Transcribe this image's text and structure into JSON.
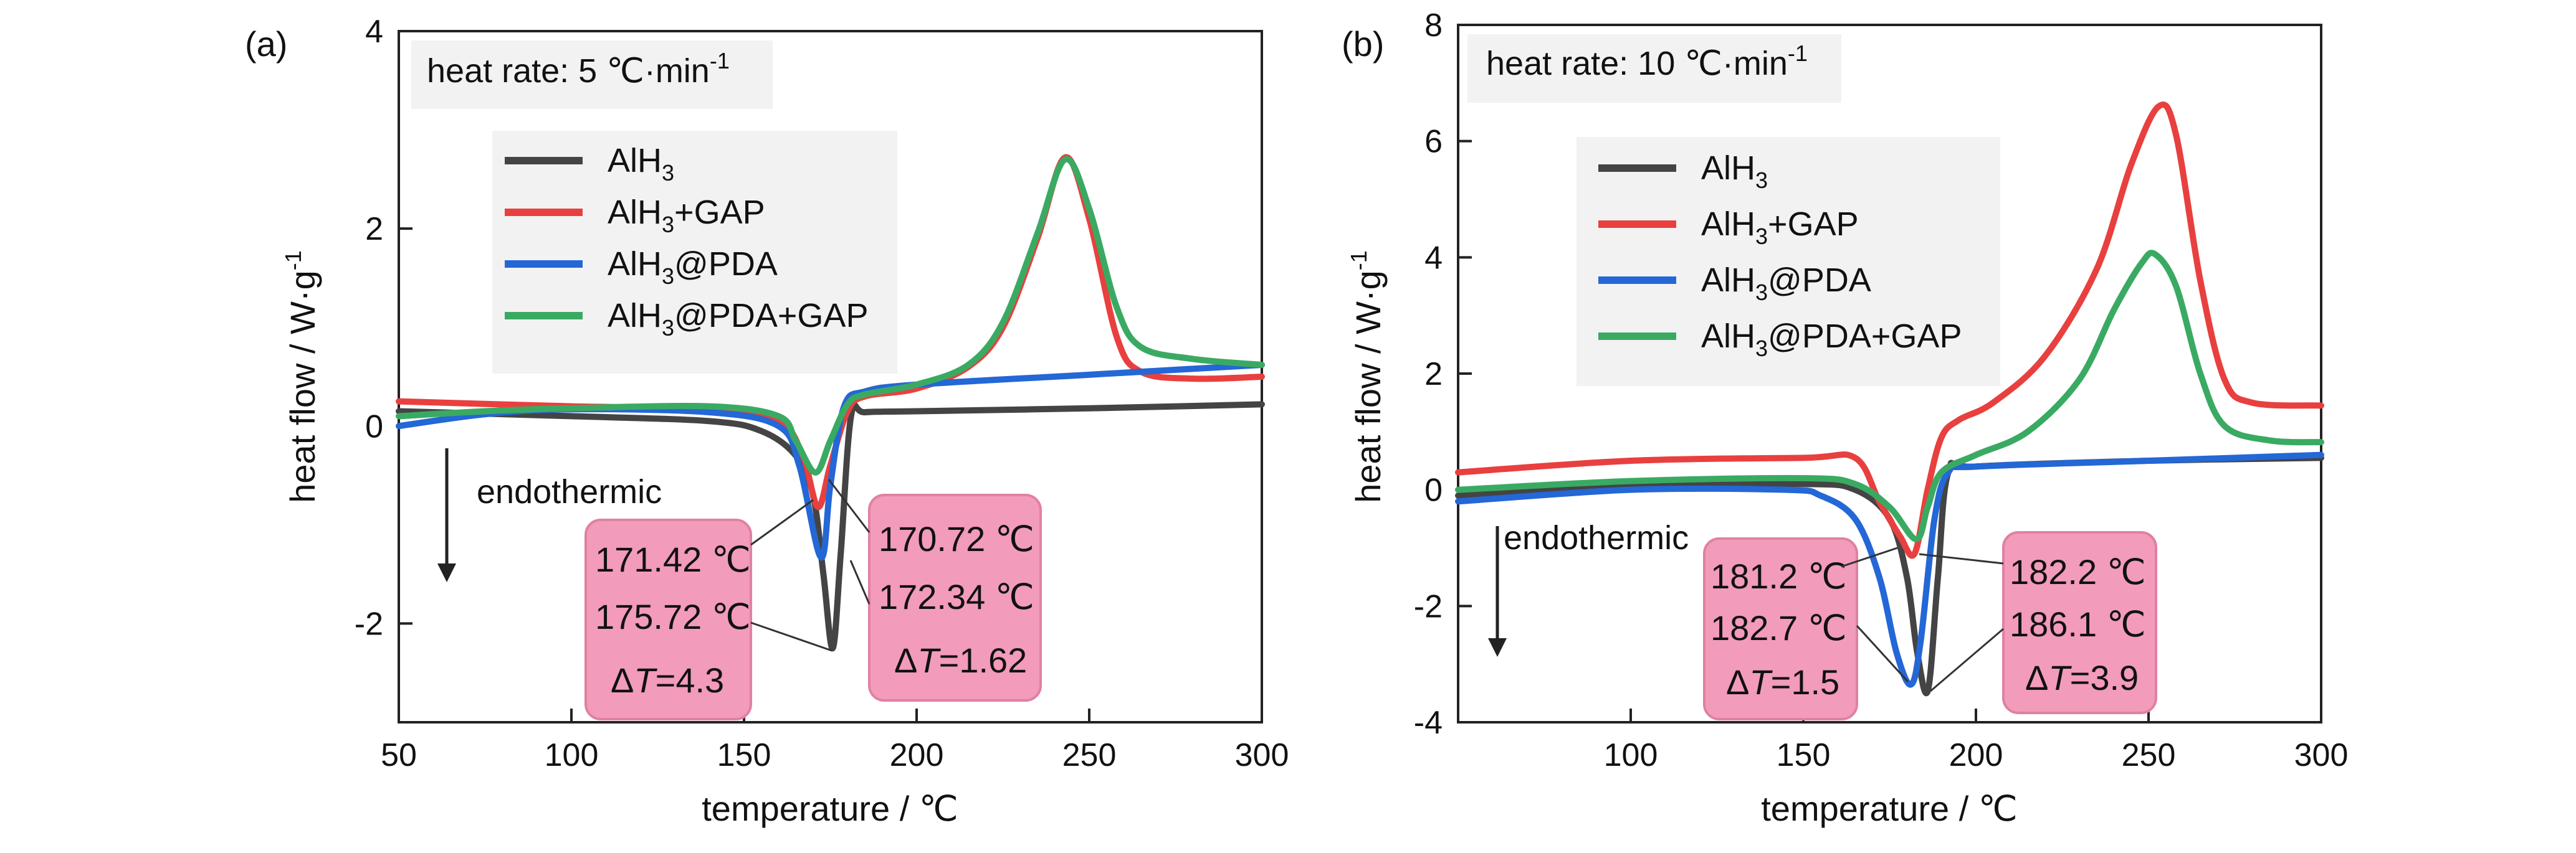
{
  "panels": [
    {
      "letter": "(a)",
      "heat_rate": "heat rate: 5 ℃·min",
      "heat_rate_sup": "-1",
      "endothermic": "endothermic",
      "legend": [
        {
          "base": "AlH",
          "sub": "3",
          "rest": "",
          "color": "#444444"
        },
        {
          "base": "AlH",
          "sub": "3",
          "rest": "+GAP",
          "color": "#e8403f"
        },
        {
          "base": "AlH",
          "sub": "3",
          "rest": "@PDA",
          "color": "#2467d6"
        },
        {
          "base": "AlH",
          "sub": "3",
          "rest": "@PDA+GAP",
          "color": "#3aaa63"
        }
      ],
      "annotations": {
        "left_lines": [
          "171.42 ℃",
          "175.72 ℃"
        ],
        "left_delta": "=4.3",
        "right_lines": [
          "170.72 ℃",
          "172.34 ℃"
        ],
        "right_delta": "=1.62"
      }
    },
    {
      "letter": "(b)",
      "heat_rate": "heat rate: 10 ℃·min",
      "heat_rate_sup": "-1",
      "endothermic": "endothermic",
      "legend": [
        {
          "base": "AlH",
          "sub": "3",
          "rest": "",
          "color": "#444444"
        },
        {
          "base": "AlH",
          "sub": "3",
          "rest": "+GAP",
          "color": "#e8403f"
        },
        {
          "base": "AlH",
          "sub": "3",
          "rest": "@PDA",
          "color": "#2467d6"
        },
        {
          "base": "AlH",
          "sub": "3",
          "rest": "@PDA+GAP",
          "color": "#3aaa63"
        }
      ],
      "annotations": {
        "left_lines": [
          "181.2 ℃",
          "182.7 ℃"
        ],
        "left_delta": "=1.5",
        "right_lines": [
          "182.2 ℃",
          "186.1 ℃"
        ],
        "right_delta": "=3.9"
      }
    }
  ],
  "delta_symbol": "Δ",
  "delta_var": "T",
  "chart_data": [
    {
      "type": "line",
      "xlabel": "temperature / ℃",
      "ylabel": "heat flow / W·g",
      "ylabel_sup": "-1",
      "xlim": [
        50,
        300
      ],
      "ylim": [
        -3,
        4
      ],
      "xticks": [
        50,
        100,
        150,
        200,
        250,
        300
      ],
      "yticks": [
        -2,
        0,
        2,
        4
      ],
      "series": [
        {
          "name": "AlH3",
          "color": "#444444",
          "points": [
            [
              50,
              0.15
            ],
            [
              100,
              0.1
            ],
            [
              140,
              0.05
            ],
            [
              155,
              -0.05
            ],
            [
              165,
              -0.3
            ],
            [
              170,
              -0.7
            ],
            [
              173,
              -1.5
            ],
            [
              175.7,
              -2.25
            ],
            [
              178,
              -1.3
            ],
            [
              181,
              0.1
            ],
            [
              185,
              0.14
            ],
            [
              200,
              0.15
            ],
            [
              250,
              0.18
            ],
            [
              300,
              0.22
            ]
          ]
        },
        {
          "name": "AlH3+GAP",
          "color": "#e8403f",
          "points": [
            [
              50,
              0.25
            ],
            [
              100,
              0.2
            ],
            [
              140,
              0.17
            ],
            [
              160,
              0.05
            ],
            [
              167,
              -0.3
            ],
            [
              171.4,
              -0.82
            ],
            [
              175,
              -0.4
            ],
            [
              180,
              0.15
            ],
            [
              185,
              0.3
            ],
            [
              200,
              0.38
            ],
            [
              215,
              0.6
            ],
            [
              225,
              1.0
            ],
            [
              235,
              1.9
            ],
            [
              243,
              2.72
            ],
            [
              250,
              2.1
            ],
            [
              258,
              0.9
            ],
            [
              265,
              0.55
            ],
            [
              280,
              0.48
            ],
            [
              300,
              0.5
            ]
          ]
        },
        {
          "name": "AlH3@PDA",
          "color": "#2467d6",
          "points": [
            [
              50,
              0.0
            ],
            [
              75,
              0.12
            ],
            [
              100,
              0.17
            ],
            [
              140,
              0.14
            ],
            [
              160,
              0.0
            ],
            [
              166,
              -0.4
            ],
            [
              172.3,
              -1.33
            ],
            [
              175,
              -0.6
            ],
            [
              179,
              0.2
            ],
            [
              185,
              0.35
            ],
            [
              200,
              0.42
            ],
            [
              250,
              0.52
            ],
            [
              300,
              0.62
            ]
          ]
        },
        {
          "name": "AlH3@PDA+GAP",
          "color": "#3aaa63",
          "points": [
            [
              50,
              0.1
            ],
            [
              75,
              0.15
            ],
            [
              100,
              0.18
            ],
            [
              140,
              0.2
            ],
            [
              160,
              0.1
            ],
            [
              165,
              -0.15
            ],
            [
              170.7,
              -0.47
            ],
            [
              175,
              -0.15
            ],
            [
              180,
              0.22
            ],
            [
              185,
              0.32
            ],
            [
              200,
              0.42
            ],
            [
              215,
              0.62
            ],
            [
              225,
              1.05
            ],
            [
              235,
              1.95
            ],
            [
              243,
              2.7
            ],
            [
              250,
              2.2
            ],
            [
              258,
              1.2
            ],
            [
              265,
              0.8
            ],
            [
              280,
              0.68
            ],
            [
              300,
              0.62
            ]
          ]
        }
      ]
    },
    {
      "type": "line",
      "xlabel": "temperature / ℃",
      "ylabel": "heat flow / W·g",
      "ylabel_sup": "-1",
      "xlim": [
        50,
        300
      ],
      "ylim": [
        -4,
        8
      ],
      "xticks": [
        100,
        150,
        200,
        250,
        300
      ],
      "yticks": [
        -4,
        -2,
        0,
        2,
        4,
        6,
        8
      ],
      "series": [
        {
          "name": "AlH3",
          "color": "#444444",
          "points": [
            [
              50,
              -0.1
            ],
            [
              100,
              0.05
            ],
            [
              150,
              0.1
            ],
            [
              165,
              0.0
            ],
            [
              175,
              -0.5
            ],
            [
              180,
              -1.5
            ],
            [
              183,
              -2.8
            ],
            [
              186.1,
              -3.45
            ],
            [
              189,
              -1.5
            ],
            [
              192,
              0.3
            ],
            [
              200,
              0.4
            ],
            [
              250,
              0.5
            ],
            [
              300,
              0.55
            ]
          ]
        },
        {
          "name": "AlH3+GAP",
          "color": "#e8403f",
          "points": [
            [
              50,
              0.3
            ],
            [
              100,
              0.5
            ],
            [
              150,
              0.55
            ],
            [
              165,
              0.55
            ],
            [
              172,
              -0.2
            ],
            [
              178,
              -0.8
            ],
            [
              182.2,
              -1.1
            ],
            [
              186,
              0.0
            ],
            [
              190,
              0.9
            ],
            [
              195,
              1.2
            ],
            [
              205,
              1.5
            ],
            [
              220,
              2.3
            ],
            [
              235,
              3.8
            ],
            [
              245,
              5.6
            ],
            [
              253,
              6.6
            ],
            [
              258,
              6.1
            ],
            [
              265,
              3.6
            ],
            [
              272,
              1.9
            ],
            [
              280,
              1.5
            ],
            [
              300,
              1.45
            ]
          ]
        },
        {
          "name": "AlH3@PDA",
          "color": "#2467d6",
          "points": [
            [
              50,
              -0.2
            ],
            [
              100,
              0.0
            ],
            [
              145,
              0.0
            ],
            [
              155,
              -0.1
            ],
            [
              165,
              -0.5
            ],
            [
              172,
              -1.5
            ],
            [
              177,
              -2.8
            ],
            [
              181.2,
              -3.35
            ],
            [
              184,
              -2.6
            ],
            [
              188,
              -0.5
            ],
            [
              192,
              0.3
            ],
            [
              200,
              0.4
            ],
            [
              250,
              0.5
            ],
            [
              300,
              0.6
            ]
          ]
        },
        {
          "name": "AlH3@PDA+GAP",
          "color": "#3aaa63",
          "points": [
            [
              50,
              0.0
            ],
            [
              100,
              0.15
            ],
            [
              150,
              0.2
            ],
            [
              165,
              0.1
            ],
            [
              175,
              -0.3
            ],
            [
              182.7,
              -0.85
            ],
            [
              186,
              -0.3
            ],
            [
              190,
              0.3
            ],
            [
              200,
              0.6
            ],
            [
              215,
              1.0
            ],
            [
              230,
              1.9
            ],
            [
              240,
              3.1
            ],
            [
              248,
              3.9
            ],
            [
              252,
              4.05
            ],
            [
              258,
              3.5
            ],
            [
              265,
              2.0
            ],
            [
              272,
              1.1
            ],
            [
              285,
              0.85
            ],
            [
              300,
              0.82
            ]
          ]
        }
      ]
    }
  ]
}
